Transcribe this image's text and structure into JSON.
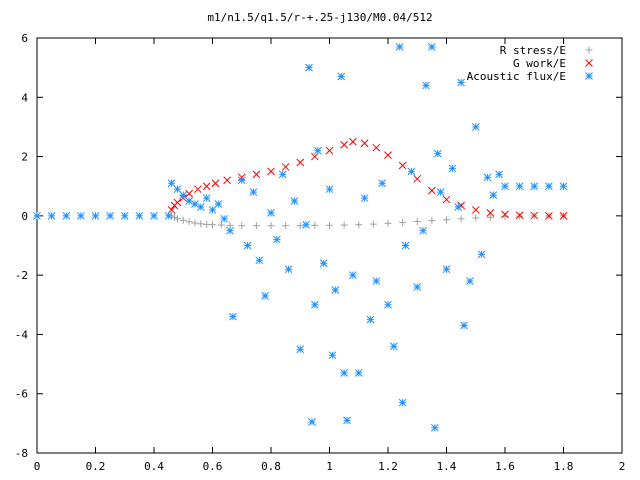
{
  "chart_data": {
    "type": "scatter",
    "title": "m1/n1.5/q1.5/r-+.25-j130/M0.04/512",
    "xlabel": "",
    "ylabel": "",
    "xlim": [
      0,
      2
    ],
    "ylim": [
      -8,
      6
    ],
    "xticks": [
      "0",
      "0.2",
      "0.4",
      "0.6",
      "0.8",
      "1",
      "1.2",
      "1.4",
      "1.6",
      "1.8",
      "2"
    ],
    "yticks": [
      "-8",
      "-6",
      "-4",
      "-2",
      "0",
      "2",
      "4",
      "6"
    ],
    "grid": false,
    "legend_position": "top-right",
    "series": [
      {
        "name": "R stress/E",
        "color": "#a0a0a0",
        "marker": "plus",
        "points": [
          [
            0.46,
            0.0
          ],
          [
            0.47,
            -0.05
          ],
          [
            0.48,
            -0.1
          ],
          [
            0.5,
            -0.15
          ],
          [
            0.52,
            -0.2
          ],
          [
            0.54,
            -0.24
          ],
          [
            0.56,
            -0.27
          ],
          [
            0.58,
            -0.29
          ],
          [
            0.6,
            -0.3
          ],
          [
            0.63,
            -0.31
          ],
          [
            0.66,
            -0.32
          ],
          [
            0.7,
            -0.33
          ],
          [
            0.75,
            -0.33
          ],
          [
            0.8,
            -0.33
          ],
          [
            0.85,
            -0.33
          ],
          [
            0.9,
            -0.33
          ],
          [
            0.95,
            -0.32
          ],
          [
            1.0,
            -0.32
          ],
          [
            1.05,
            -0.31
          ],
          [
            1.1,
            -0.3
          ],
          [
            1.15,
            -0.28
          ],
          [
            1.2,
            -0.25
          ],
          [
            1.25,
            -0.22
          ],
          [
            1.3,
            -0.19
          ],
          [
            1.35,
            -0.16
          ],
          [
            1.4,
            -0.13
          ],
          [
            1.45,
            -0.1
          ],
          [
            1.5,
            -0.07
          ],
          [
            1.55,
            -0.05
          ],
          [
            1.6,
            -0.02
          ],
          [
            1.65,
            -0.01
          ],
          [
            1.7,
            0.0
          ],
          [
            1.75,
            0.0
          ],
          [
            1.8,
            0.0
          ]
        ]
      },
      {
        "name": "G work/E",
        "color": "#ff0000",
        "marker": "cross",
        "points": [
          [
            0.46,
            0.2
          ],
          [
            0.47,
            0.35
          ],
          [
            0.48,
            0.45
          ],
          [
            0.5,
            0.6
          ],
          [
            0.52,
            0.75
          ],
          [
            0.55,
            0.9
          ],
          [
            0.58,
            1.0
          ],
          [
            0.61,
            1.1
          ],
          [
            0.65,
            1.2
          ],
          [
            0.7,
            1.3
          ],
          [
            0.75,
            1.4
          ],
          [
            0.8,
            1.5
          ],
          [
            0.85,
            1.65
          ],
          [
            0.9,
            1.8
          ],
          [
            0.95,
            2.0
          ],
          [
            1.0,
            2.2
          ],
          [
            1.05,
            2.4
          ],
          [
            1.08,
            2.5
          ],
          [
            1.12,
            2.45
          ],
          [
            1.16,
            2.3
          ],
          [
            1.2,
            2.05
          ],
          [
            1.25,
            1.7
          ],
          [
            1.3,
            1.25
          ],
          [
            1.35,
            0.85
          ],
          [
            1.4,
            0.55
          ],
          [
            1.45,
            0.35
          ],
          [
            1.5,
            0.2
          ],
          [
            1.55,
            0.1
          ],
          [
            1.6,
            0.05
          ],
          [
            1.65,
            0.02
          ],
          [
            1.7,
            0.01
          ],
          [
            1.75,
            0.0
          ],
          [
            1.8,
            0.0
          ]
        ]
      },
      {
        "name": "Acoustic flux/E",
        "color": "#1e90ff",
        "marker": "star",
        "points": [
          [
            0.0,
            0.0
          ],
          [
            0.05,
            0.0
          ],
          [
            0.1,
            0.0
          ],
          [
            0.15,
            0.0
          ],
          [
            0.2,
            0.0
          ],
          [
            0.25,
            0.0
          ],
          [
            0.3,
            0.0
          ],
          [
            0.35,
            0.0
          ],
          [
            0.4,
            0.0
          ],
          [
            0.45,
            0.0
          ],
          [
            0.46,
            1.1
          ],
          [
            0.48,
            0.9
          ],
          [
            0.5,
            0.7
          ],
          [
            0.52,
            0.5
          ],
          [
            0.54,
            0.4
          ],
          [
            0.56,
            0.3
          ],
          [
            0.58,
            0.6
          ],
          [
            0.6,
            0.2
          ],
          [
            0.62,
            0.4
          ],
          [
            0.64,
            -0.1
          ],
          [
            0.66,
            -0.5
          ],
          [
            0.67,
            -3.4
          ],
          [
            0.7,
            1.2
          ],
          [
            0.72,
            -1.0
          ],
          [
            0.74,
            0.8
          ],
          [
            0.76,
            -1.5
          ],
          [
            0.78,
            -2.7
          ],
          [
            0.8,
            0.1
          ],
          [
            0.82,
            -0.8
          ],
          [
            0.84,
            1.4
          ],
          [
            0.86,
            -1.8
          ],
          [
            0.88,
            0.5
          ],
          [
            0.9,
            -4.5
          ],
          [
            0.92,
            -0.3
          ],
          [
            0.93,
            5.0
          ],
          [
            0.94,
            -6.95
          ],
          [
            0.95,
            -3.0
          ],
          [
            0.96,
            2.2
          ],
          [
            0.98,
            -1.6
          ],
          [
            1.0,
            0.9
          ],
          [
            1.01,
            -4.7
          ],
          [
            1.02,
            -2.5
          ],
          [
            1.04,
            4.7
          ],
          [
            1.05,
            -5.3
          ],
          [
            1.06,
            -6.9
          ],
          [
            1.08,
            -2.0
          ],
          [
            1.1,
            -5.3
          ],
          [
            1.12,
            0.6
          ],
          [
            1.14,
            -3.5
          ],
          [
            1.16,
            -2.2
          ],
          [
            1.18,
            1.1
          ],
          [
            1.2,
            -3.0
          ],
          [
            1.22,
            -4.4
          ],
          [
            1.24,
            5.7
          ],
          [
            1.25,
            -6.3
          ],
          [
            1.26,
            -1.0
          ],
          [
            1.28,
            1.5
          ],
          [
            1.3,
            -2.4
          ],
          [
            1.32,
            -0.5
          ],
          [
            1.33,
            4.4
          ],
          [
            1.35,
            5.7
          ],
          [
            1.36,
            -7.15
          ],
          [
            1.37,
            2.1
          ],
          [
            1.38,
            0.8
          ],
          [
            1.4,
            -1.8
          ],
          [
            1.42,
            1.6
          ],
          [
            1.44,
            0.3
          ],
          [
            1.45,
            4.5
          ],
          [
            1.46,
            -3.7
          ],
          [
            1.48,
            -2.2
          ],
          [
            1.5,
            3.0
          ],
          [
            1.52,
            -1.3
          ],
          [
            1.54,
            1.3
          ],
          [
            1.56,
            0.7
          ],
          [
            1.58,
            1.4
          ],
          [
            1.6,
            1.0
          ],
          [
            1.65,
            1.0
          ],
          [
            1.7,
            1.0
          ],
          [
            1.75,
            1.0
          ],
          [
            1.8,
            1.0
          ]
        ]
      }
    ]
  }
}
